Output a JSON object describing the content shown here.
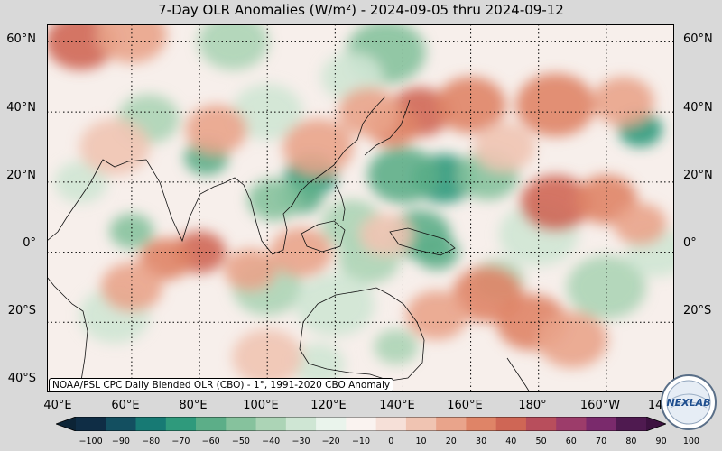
{
  "title": "7-Day OLR Anomalies (W/m²) - 2024-09-05 thru 2024-09-12",
  "credit": "NOAA/PSL CPC Daily Blended OLR (CBO) - 1°, 1991-2020 CBO Anomaly",
  "logo_text": "NEXLAB",
  "lat_labels": [
    "60°N",
    "40°N",
    "20°N",
    "0°",
    "20°S",
    "40°S"
  ],
  "lon_labels": [
    "40°E",
    "60°E",
    "80°E",
    "100°E",
    "120°E",
    "140°E",
    "160°E",
    "180°",
    "160°W",
    "140°W"
  ],
  "colorbar": {
    "ticks": [
      "−100",
      "−90",
      "−80",
      "−70",
      "−60",
      "−50",
      "−40",
      "−30",
      "−20",
      "−10",
      "0",
      "10",
      "20",
      "30",
      "40",
      "50",
      "60",
      "70",
      "80",
      "90",
      "100"
    ],
    "negative_colors": [
      "#0f2d45",
      "#134f60",
      "#177a74",
      "#2f9a7c",
      "#5cae88",
      "#86c29d",
      "#acd4b6",
      "#cfe6d4",
      "#eaf4ec"
    ],
    "neutral_color": "#faf3f0",
    "positive_colors": [
      "#f6e0d8",
      "#f0c4b2",
      "#e9a48b",
      "#df8467",
      "#cf6655",
      "#b84e5c",
      "#9c3c6a",
      "#7a2a6c",
      "#4f1a50"
    ]
  },
  "map": {
    "lon_range": [
      35,
      220
    ],
    "lat_range": [
      -40,
      65
    ],
    "anomalies": [
      {
        "lon": 82,
        "lat": 27,
        "value": -45,
        "r": 5
      },
      {
        "lon": 113,
        "lat": 22,
        "value": -55,
        "r": 6
      },
      {
        "lon": 110,
        "lat": 16,
        "value": -45,
        "r": 5
      },
      {
        "lon": 102,
        "lat": 15,
        "value": -35,
        "r": 6
      },
      {
        "lon": 125,
        "lat": 8,
        "value": -25,
        "r": 7
      },
      {
        "lon": 152,
        "lat": 21,
        "value": -55,
        "r": 7
      },
      {
        "lon": 140,
        "lat": 22,
        "value": -40,
        "r": 8
      },
      {
        "lon": 165,
        "lat": 22,
        "value": -30,
        "r": 7
      },
      {
        "lon": 145,
        "lat": 5,
        "value": -40,
        "r": 7
      },
      {
        "lon": 150,
        "lat": 0,
        "value": -45,
        "r": 5
      },
      {
        "lon": 130,
        "lat": -2,
        "value": -20,
        "r": 7
      },
      {
        "lon": 210,
        "lat": 35,
        "value": -55,
        "r": 5
      },
      {
        "lon": 135,
        "lat": 57,
        "value": -30,
        "r": 9
      },
      {
        "lon": 90,
        "lat": 60,
        "value": -20,
        "r": 8
      },
      {
        "lon": 65,
        "lat": 38,
        "value": -20,
        "r": 7
      },
      {
        "lon": 100,
        "lat": 40,
        "value": -15,
        "r": 8
      },
      {
        "lon": 125,
        "lat": 50,
        "value": -15,
        "r": 7
      },
      {
        "lon": 60,
        "lat": 6,
        "value": -35,
        "r": 5
      },
      {
        "lon": 45,
        "lat": 20,
        "value": -15,
        "r": 6
      },
      {
        "lon": 100,
        "lat": -10,
        "value": -20,
        "r": 8
      },
      {
        "lon": 120,
        "lat": -15,
        "value": -15,
        "r": 9
      },
      {
        "lon": 168,
        "lat": -8,
        "value": -25,
        "r": 6
      },
      {
        "lon": 180,
        "lat": 5,
        "value": -15,
        "r": 9
      },
      {
        "lon": 200,
        "lat": -10,
        "value": -20,
        "r": 9
      },
      {
        "lon": 215,
        "lat": 0,
        "value": -15,
        "r": 7
      },
      {
        "lon": 115,
        "lat": -32,
        "value": -15,
        "r": 6
      },
      {
        "lon": 138,
        "lat": -27,
        "value": -25,
        "r": 5
      },
      {
        "lon": 55,
        "lat": -18,
        "value": -15,
        "r": 8
      },
      {
        "lon": 145,
        "lat": 40,
        "value": 45,
        "r": 7
      },
      {
        "lon": 137,
        "lat": 36,
        "value": 35,
        "r": 6
      },
      {
        "lon": 160,
        "lat": 42,
        "value": 30,
        "r": 8
      },
      {
        "lon": 185,
        "lat": 42,
        "value": 35,
        "r": 9
      },
      {
        "lon": 205,
        "lat": 43,
        "value": 25,
        "r": 7
      },
      {
        "lon": 115,
        "lat": 30,
        "value": 25,
        "r": 8
      },
      {
        "lon": 130,
        "lat": 40,
        "value": 20,
        "r": 7
      },
      {
        "lon": 85,
        "lat": 35,
        "value": 20,
        "r": 7
      },
      {
        "lon": 45,
        "lat": 60,
        "value": 40,
        "r": 8
      },
      {
        "lon": 60,
        "lat": 62,
        "value": 25,
        "r": 8
      },
      {
        "lon": 185,
        "lat": 14,
        "value": 40,
        "r": 8
      },
      {
        "lon": 200,
        "lat": 15,
        "value": 30,
        "r": 7
      },
      {
        "lon": 210,
        "lat": 8,
        "value": 25,
        "r": 6
      },
      {
        "lon": 80,
        "lat": 0,
        "value": 45,
        "r": 6
      },
      {
        "lon": 70,
        "lat": -2,
        "value": 30,
        "r": 6
      },
      {
        "lon": 95,
        "lat": -5,
        "value": 25,
        "r": 6
      },
      {
        "lon": 60,
        "lat": -10,
        "value": 20,
        "r": 7
      },
      {
        "lon": 165,
        "lat": -12,
        "value": 35,
        "r": 8
      },
      {
        "lon": 178,
        "lat": -20,
        "value": 30,
        "r": 8
      },
      {
        "lon": 190,
        "lat": -25,
        "value": 25,
        "r": 8
      },
      {
        "lon": 150,
        "lat": -18,
        "value": 20,
        "r": 7
      },
      {
        "lon": 110,
        "lat": 0,
        "value": 20,
        "r": 7
      },
      {
        "lon": 135,
        "lat": 5,
        "value": 15,
        "r": 6
      },
      {
        "lon": 55,
        "lat": 30,
        "value": 15,
        "r": 8
      },
      {
        "lon": 100,
        "lat": -30,
        "value": 15,
        "r": 8
      },
      {
        "lon": 170,
        "lat": 30,
        "value": 15,
        "r": 7
      }
    ]
  }
}
